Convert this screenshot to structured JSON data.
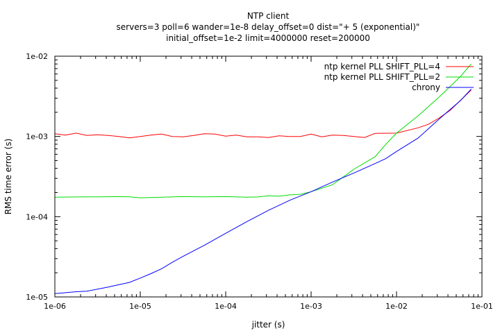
{
  "chart_data": {
    "type": "line",
    "title_lines": [
      "NTP client",
      "servers=3 poll=6 wander=1e-8 delay_offset=0 dist=\"+ 5 (exponential)\"",
      "initial_offset=1e-2 limit=4000000 reset=200000"
    ],
    "xlabel": "jitter (s)",
    "ylabel": "RMS time error (s)",
    "xscale": "log",
    "yscale": "log",
    "xlim": [
      1e-06,
      0.1
    ],
    "ylim": [
      1e-05,
      0.01
    ],
    "xticks": [
      {
        "value": 1e-06,
        "label": "1e-06"
      },
      {
        "value": 1e-05,
        "label": "1e-05"
      },
      {
        "value": 0.0001,
        "label": "1e-04"
      },
      {
        "value": 0.001,
        "label": "1e-03"
      },
      {
        "value": 0.01,
        "label": "1e-02"
      },
      {
        "value": 0.1,
        "label": "1e-01"
      }
    ],
    "yticks": [
      {
        "value": 1e-05,
        "label": "1e-05"
      },
      {
        "value": 0.0001,
        "label": "1e-04"
      },
      {
        "value": 0.001,
        "label": "1e-03"
      },
      {
        "value": 0.01,
        "label": "1e-02"
      }
    ],
    "grid": false,
    "legend_position": "top-right",
    "series": [
      {
        "name": "ntp kernel PLL SHIFT_PLL=4",
        "color": "#ff0000",
        "points": [
          [
            1e-06,
            0.00108
          ],
          [
            1.33e-06,
            0.00104
          ],
          [
            1.78e-06,
            0.0011
          ],
          [
            2.37e-06,
            0.00103
          ],
          [
            3.16e-06,
            0.00105
          ],
          [
            4.22e-06,
            0.00103
          ],
          [
            5.62e-06,
            0.001
          ],
          [
            7.5e-06,
            0.00096
          ],
          [
            1e-05,
            0.001
          ],
          [
            1.33e-05,
            0.00104
          ],
          [
            1.78e-05,
            0.00107
          ],
          [
            2.37e-05,
            0.001
          ],
          [
            3.16e-05,
            0.00099
          ],
          [
            4.22e-05,
            0.00103
          ],
          [
            5.62e-05,
            0.00108
          ],
          [
            7.5e-05,
            0.00107
          ],
          [
            0.0001,
            0.00101
          ],
          [
            0.000133,
            0.00104
          ],
          [
            0.000178,
            0.00099
          ],
          [
            0.000237,
            0.00099
          ],
          [
            0.000316,
            0.00097
          ],
          [
            0.000422,
            0.00102
          ],
          [
            0.000562,
            0.001
          ],
          [
            0.00075,
            0.001
          ],
          [
            0.001,
            0.00107
          ],
          [
            0.00133,
            0.00099
          ],
          [
            0.00178,
            0.00104
          ],
          [
            0.00237,
            0.00103
          ],
          [
            0.00316,
            0.001
          ],
          [
            0.00422,
            0.00097
          ],
          [
            0.00562,
            0.00109
          ],
          [
            0.01,
            0.0011
          ],
          [
            0.0178,
            0.00128
          ],
          [
            0.0237,
            0.00142
          ],
          [
            0.0316,
            0.0017
          ],
          [
            0.0422,
            0.0021
          ],
          [
            0.075,
            0.0038
          ]
        ]
      },
      {
        "name": "ntp kernel PLL SHIFT_PLL=2",
        "color": "#00dd00",
        "points": [
          [
            1e-06,
            0.000175
          ],
          [
            1.78e-06,
            0.000176
          ],
          [
            3.16e-06,
            0.000177
          ],
          [
            5.62e-06,
            0.000178
          ],
          [
            7.5e-06,
            0.000177
          ],
          [
            1e-05,
            0.000172
          ],
          [
            1.78e-05,
            0.000175
          ],
          [
            3.16e-05,
            0.000178
          ],
          [
            5.62e-05,
            0.000177
          ],
          [
            0.0001,
            0.000178
          ],
          [
            0.000178,
            0.000175
          ],
          [
            0.000237,
            0.000176
          ],
          [
            0.000316,
            0.000182
          ],
          [
            0.000422,
            0.00018
          ],
          [
            0.000562,
            0.000187
          ],
          [
            0.00075,
            0.00019
          ],
          [
            0.001,
            0.000205
          ],
          [
            0.00178,
            0.00025
          ],
          [
            0.00316,
            0.00039
          ],
          [
            0.00562,
            0.00056
          ],
          [
            0.0075,
            0.0008
          ],
          [
            0.01,
            0.0011
          ],
          [
            0.0178,
            0.0018
          ],
          [
            0.0316,
            0.0031
          ],
          [
            0.0562,
            0.0056
          ],
          [
            0.075,
            0.008
          ]
        ]
      },
      {
        "name": "chrony",
        "color": "#0000ff",
        "points": [
          [
            1e-06,
            1.1e-05
          ],
          [
            1.78e-06,
            1.16e-05
          ],
          [
            2.37e-06,
            1.18e-05
          ],
          [
            3.16e-06,
            1.25e-05
          ],
          [
            4.22e-06,
            1.33e-05
          ],
          [
            5.62e-06,
            1.42e-05
          ],
          [
            7.5e-06,
            1.52e-05
          ],
          [
            1e-05,
            1.72e-05
          ],
          [
            1.33e-05,
            1.95e-05
          ],
          [
            1.78e-05,
            2.25e-05
          ],
          [
            2.37e-05,
            2.7e-05
          ],
          [
            3.16e-05,
            3.2e-05
          ],
          [
            5.62e-05,
            4.4e-05
          ],
          [
            0.0001,
            6.2e-05
          ],
          [
            0.000178,
            8.7e-05
          ],
          [
            0.000316,
            0.00012
          ],
          [
            0.000562,
            0.00016
          ],
          [
            0.001,
            0.000205
          ],
          [
            0.00178,
            0.00027
          ],
          [
            0.00316,
            0.00035
          ],
          [
            0.00562,
            0.00046
          ],
          [
            0.0075,
            0.00053
          ],
          [
            0.01,
            0.00065
          ],
          [
            0.0178,
            0.00095
          ],
          [
            0.0316,
            0.00165
          ],
          [
            0.0562,
            0.0028
          ],
          [
            0.075,
            0.0039
          ]
        ]
      }
    ]
  }
}
